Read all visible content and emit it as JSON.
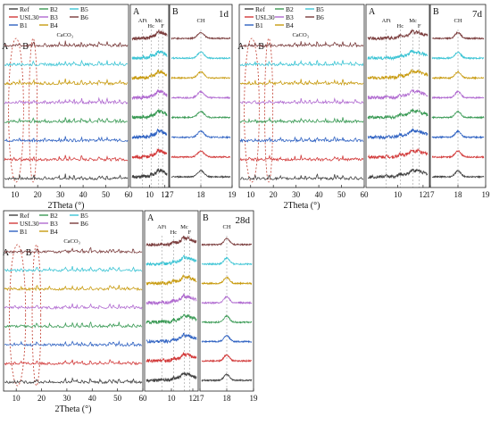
{
  "figure": {
    "axis_label": "2Theta (°)",
    "legend_entries": [
      "Ref",
      "USL30",
      "B1",
      "B2",
      "B3",
      "B4",
      "B5",
      "B6"
    ],
    "series_colors": [
      "#404040",
      "#d23a3a",
      "#2f62c2",
      "#3a9a55",
      "#b06ad0",
      "#c89b10",
      "#3cc4d4",
      "#7a3c3c"
    ],
    "series_order_bottom_to_top": [
      "Ref",
      "USL30",
      "B1",
      "B2",
      "B3",
      "B4",
      "B5",
      "B6"
    ],
    "region_labels": {
      "a": "A",
      "b": "B"
    },
    "peak_labels": {
      "caco3": "CaCO₃",
      "aft": "AFt",
      "hc": "Hc",
      "mc": "Mc",
      "f": "F",
      "ch": "CH"
    },
    "age_labels": [
      "1d",
      "7d",
      "28d"
    ]
  },
  "chart_data": [
    {
      "type": "line",
      "age": "1d",
      "panels": [
        {
          "id": "main",
          "xlim": [
            5,
            60
          ],
          "x_ticks": [
            10,
            20,
            30,
            40,
            50,
            60
          ],
          "peaks_2theta": [
            9.1,
            11.7,
            18.0,
            23.0,
            29.4,
            32.2,
            34.1,
            36.0,
            39.4,
            43.1,
            47.1,
            47.5,
            48.5,
            50.8,
            54.3,
            56.5
          ],
          "region_markers": [
            {
              "label": "A",
              "x": [
                8,
                13
              ]
            },
            {
              "label": "B",
              "x": [
                17,
                19
              ]
            }
          ],
          "labels": [
            "CaCO₃"
          ]
        },
        {
          "id": "A",
          "xlim": [
            7.5,
            12.5
          ],
          "x_ticks": [
            10,
            12
          ],
          "peaks_2theta": [
            9.1,
            10.2,
            11.2,
            11.7
          ],
          "labels": [
            "AFt",
            "Hc",
            "Mc",
            "F"
          ]
        },
        {
          "id": "B",
          "xlim": [
            17,
            19
          ],
          "x_ticks": [
            17,
            18,
            19
          ],
          "peaks_2theta": [
            18.0
          ],
          "labels": [
            "CH"
          ]
        }
      ],
      "series": [
        {
          "name": "Ref"
        },
        {
          "name": "USL30"
        },
        {
          "name": "B1"
        },
        {
          "name": "B2"
        },
        {
          "name": "B3"
        },
        {
          "name": "B4"
        },
        {
          "name": "B5"
        },
        {
          "name": "B6"
        }
      ]
    },
    {
      "type": "line",
      "age": "7d",
      "panels": [
        {
          "id": "main",
          "xlim": [
            5,
            60
          ],
          "x_ticks": [
            10,
            20,
            30,
            40,
            50,
            60
          ],
          "peaks_2theta": [
            9.1,
            11.7,
            18.0,
            23.0,
            29.4,
            32.2,
            34.1,
            36.0,
            39.4,
            43.1,
            47.1,
            47.5,
            48.5,
            50.8,
            54.3,
            56.5
          ],
          "region_markers": [
            {
              "label": "A",
              "x": [
                8,
                13
              ]
            },
            {
              "label": "B",
              "x": [
                17,
                19
              ]
            }
          ],
          "labels": [
            "CaCO₃"
          ]
        },
        {
          "id": "A",
          "xlim": [
            7.5,
            12.5
          ],
          "x_ticks": [
            10,
            12
          ],
          "peaks_2theta": [
            9.1,
            10.2,
            11.2,
            11.7
          ],
          "labels": [
            "AFt",
            "Hc",
            "Mc",
            "F"
          ]
        },
        {
          "id": "B",
          "xlim": [
            17,
            19
          ],
          "x_ticks": [
            17,
            18,
            19
          ],
          "peaks_2theta": [
            18.0
          ],
          "labels": [
            "CH"
          ]
        }
      ],
      "series": [
        {
          "name": "Ref"
        },
        {
          "name": "USL30"
        },
        {
          "name": "B1"
        },
        {
          "name": "B2"
        },
        {
          "name": "B3"
        },
        {
          "name": "B4"
        },
        {
          "name": "B5"
        },
        {
          "name": "B6"
        }
      ]
    },
    {
      "type": "line",
      "age": "28d",
      "panels": [
        {
          "id": "main",
          "xlim": [
            5,
            60
          ],
          "x_ticks": [
            10,
            20,
            30,
            40,
            50,
            60
          ],
          "peaks_2theta": [
            9.1,
            11.7,
            18.0,
            23.0,
            29.4,
            32.2,
            34.1,
            36.0,
            39.4,
            43.1,
            47.1,
            47.5,
            48.5,
            50.8,
            54.3,
            56.5
          ],
          "region_markers": [
            {
              "label": "A",
              "x": [
                8,
                13
              ]
            },
            {
              "label": "B",
              "x": [
                17,
                19
              ]
            }
          ],
          "labels": [
            "CaCO₃"
          ]
        },
        {
          "id": "A",
          "xlim": [
            7.5,
            12.5
          ],
          "x_ticks": [
            10,
            12
          ],
          "peaks_2theta": [
            9.1,
            10.2,
            11.2,
            11.7
          ],
          "labels": [
            "AFt",
            "Hc",
            "Mc",
            "F"
          ]
        },
        {
          "id": "B",
          "xlim": [
            17,
            19
          ],
          "x_ticks": [
            17,
            18,
            19
          ],
          "peaks_2theta": [
            18.0
          ],
          "labels": [
            "CH"
          ]
        }
      ],
      "series": [
        {
          "name": "Ref"
        },
        {
          "name": "USL30"
        },
        {
          "name": "B1"
        },
        {
          "name": "B2"
        },
        {
          "name": "B3"
        },
        {
          "name": "B4"
        },
        {
          "name": "B5"
        },
        {
          "name": "B6"
        }
      ]
    }
  ]
}
